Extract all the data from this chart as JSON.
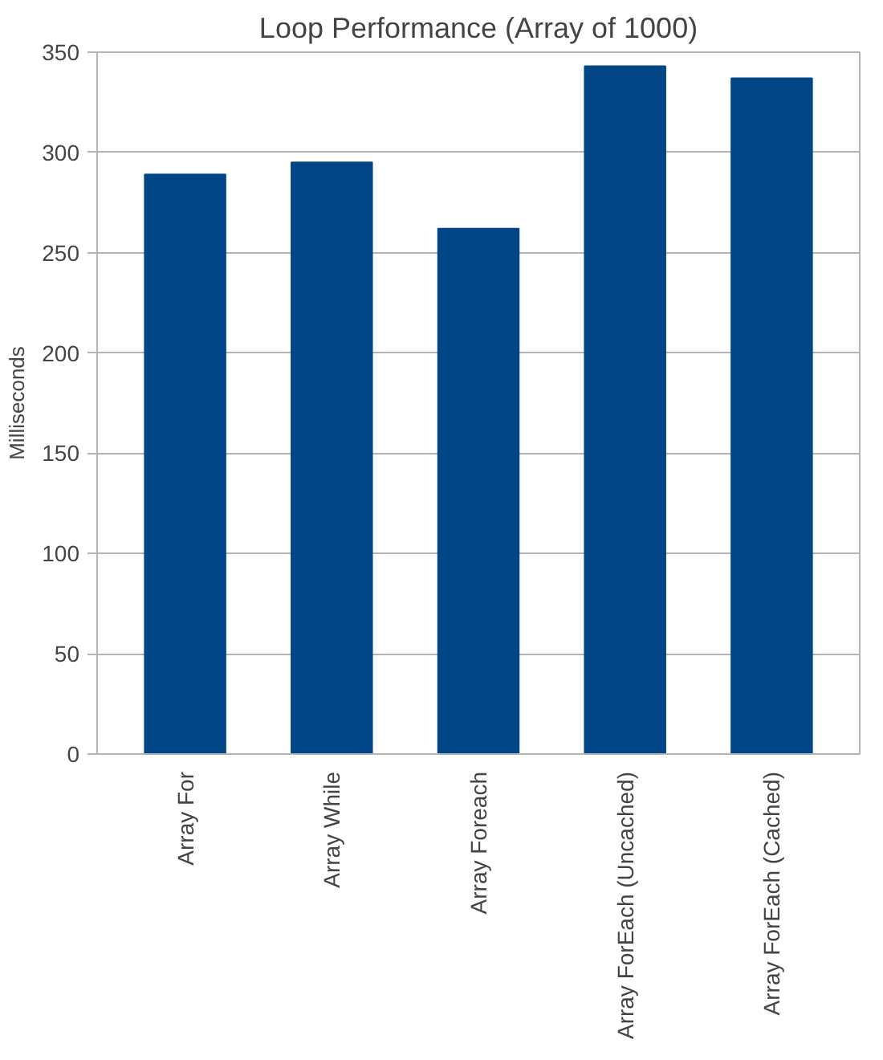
{
  "chart_data": {
    "type": "bar",
    "title": "Loop Performance (Array of 1000)",
    "ylabel": "Milliseconds",
    "categories": [
      "Array For",
      "Array While",
      "Array Foreach",
      "Array ForEach (Uncached)",
      "Array ForEach (Cached)"
    ],
    "values": [
      289,
      295,
      262,
      343,
      337
    ],
    "color": "#004586",
    "ylim": [
      0,
      350
    ],
    "yticks": [
      0,
      50,
      100,
      150,
      200,
      250,
      300,
      350
    ],
    "grid": "y"
  }
}
